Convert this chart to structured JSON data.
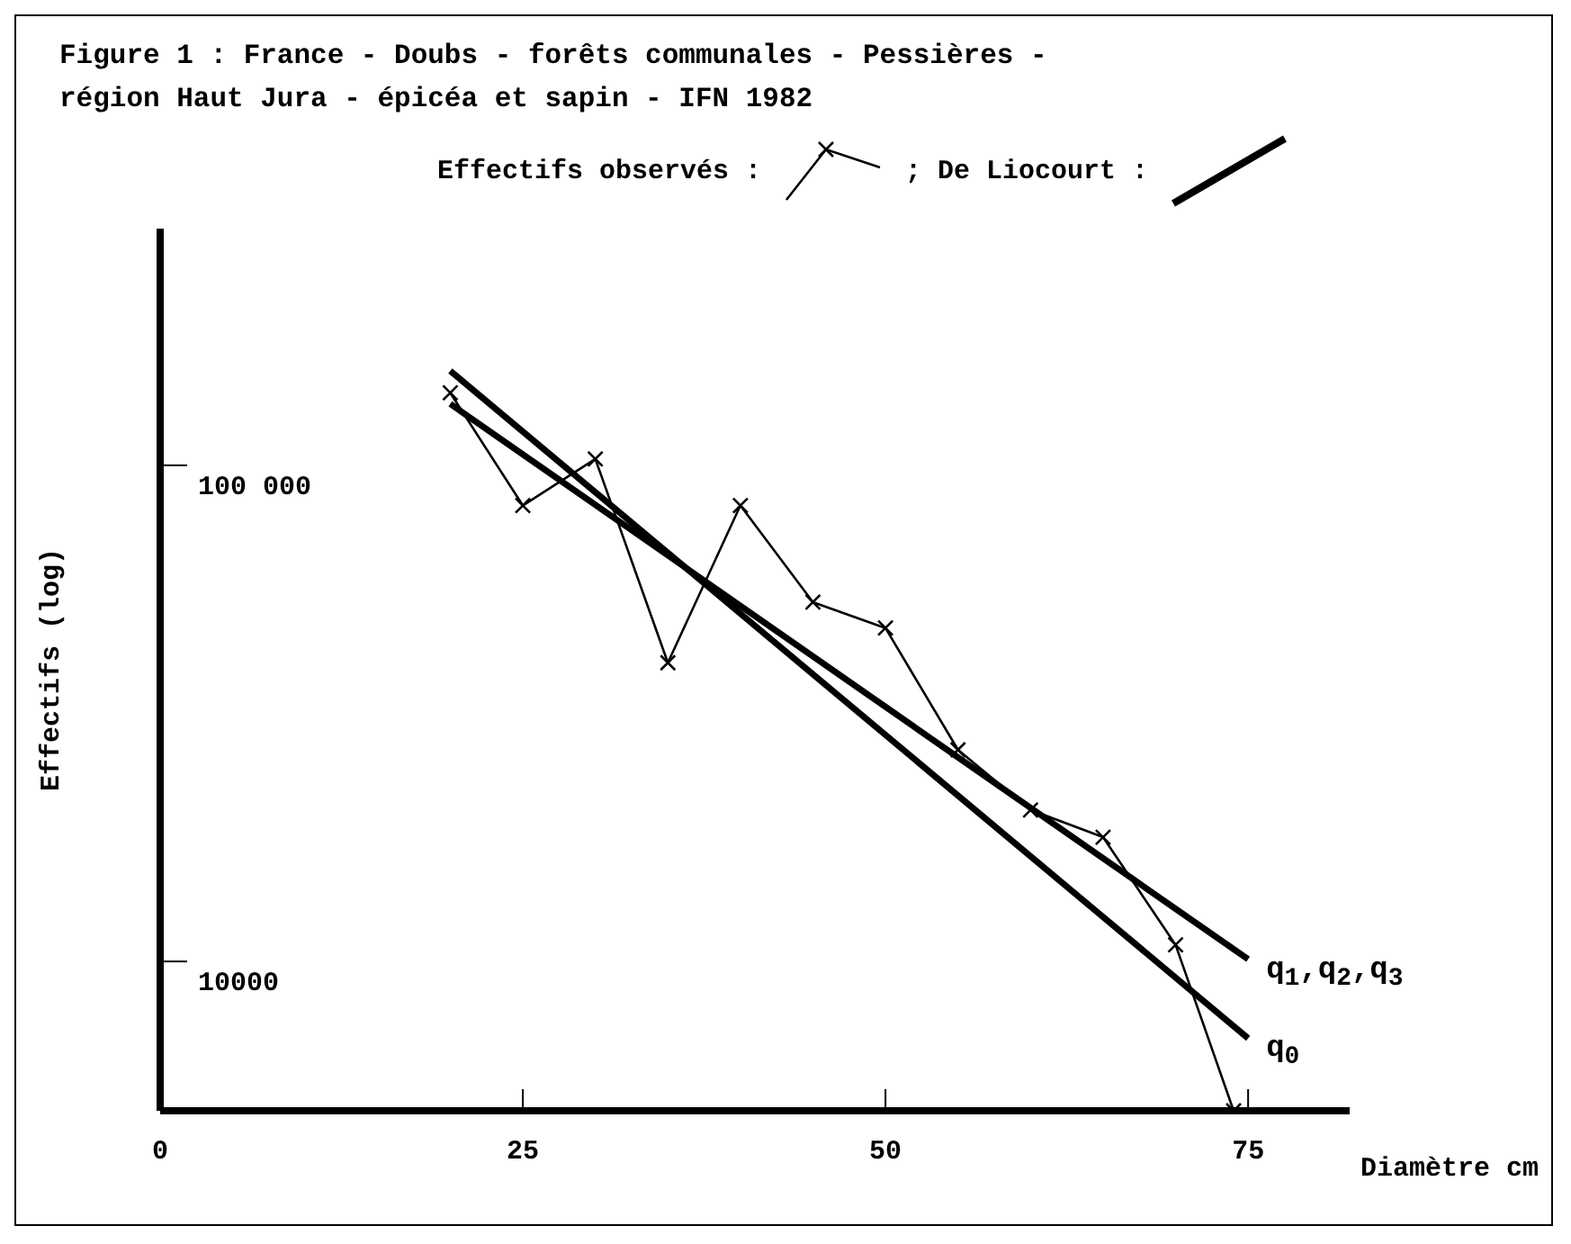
{
  "chart_data": {
    "type": "line",
    "title": "Figure 1 : France - Doubs - forêts communales - Pessières - région Haut Jura - épicéa et sapin - IFN 1982",
    "xlabel": "Diamètre cm",
    "ylabel": "Effectifs (log)",
    "log": true,
    "xlim": [
      0,
      82
    ],
    "xticks": [
      0,
      25,
      50,
      75
    ],
    "ylim": [
      5000,
      300000
    ],
    "yticks": [
      {
        "value": 10000,
        "label": "10000"
      },
      {
        "value": 100000,
        "label": "100 000"
      }
    ],
    "grid": false,
    "legend": "top",
    "line_style": "solid",
    "annotations": [
      "; De Liocourt :"
    ],
    "series": [
      {
        "name": "Effectifs observés :",
        "color": "#000000",
        "marker": "cross",
        "x": [
          20,
          25,
          30,
          35,
          40,
          45,
          50,
          55,
          60,
          65,
          70,
          74
        ],
        "values": [
          140000,
          83000,
          103000,
          40000,
          83000,
          53000,
          47000,
          26700,
          20200,
          17800,
          10800,
          5000
        ]
      },
      {
        "name": "q$_{1}$,q$_{2}$,q$_{3}$",
        "color": "#000000",
        "marker": "none",
        "x": [
          20,
          75
        ],
        "values": [
          133000,
          10100
        ]
      },
      {
        "name": "q$_{0}$",
        "color": "#000000",
        "marker": "none",
        "x": [
          20,
          75
        ],
        "values": [
          155000,
          7000
        ]
      }
    ]
  }
}
